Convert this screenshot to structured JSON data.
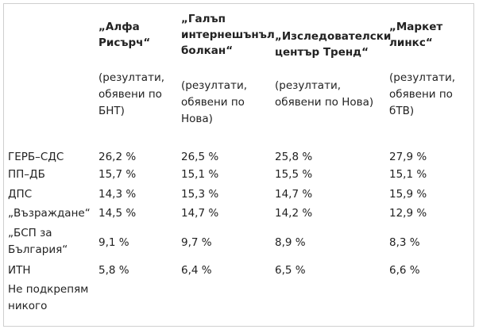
{
  "columns": [
    {
      "title": [
        "„Алфа",
        "Рисърч“"
      ],
      "note": [
        "(резултати,",
        "обявени по",
        "БНТ)"
      ]
    },
    {
      "title": [
        "„Галъп",
        "интернешънъл",
        "болкан“"
      ],
      "note": [
        "(резултати,",
        "обявени по",
        "Нова)"
      ]
    },
    {
      "title": [
        "„Изследователски",
        "център Тренд“"
      ],
      "note": [
        "(резултати,",
        "обявени по Нова)"
      ]
    },
    {
      "title": [
        "„Маркет",
        "линкс“"
      ],
      "note": [
        "(резултати,",
        "обявени по",
        "бТВ)"
      ]
    }
  ],
  "rows": [
    {
      "party": [
        "ГЕРБ–СДС"
      ],
      "values": [
        "26,2 %",
        "26,5 %",
        "25,8 %",
        "27,9 %"
      ]
    },
    {
      "party": [
        "ПП–ДБ"
      ],
      "values": [
        "15,7 %",
        "15,1 %",
        "15,5 %",
        "15,1 %"
      ]
    },
    {
      "party": [
        "ДПС"
      ],
      "values": [
        "14,3 %",
        "15,3 %",
        "14,7 %",
        "15,9 %"
      ]
    },
    {
      "party": [
        "„Възраждане“"
      ],
      "values": [
        "14,5 %",
        "14,7 %",
        "14,2 %",
        "12,9 %"
      ]
    },
    {
      "party": [
        "„БСП за",
        "България“"
      ],
      "values": [
        "9,1 %",
        "9,7 %",
        "8,9 %",
        "8,3 %"
      ]
    },
    {
      "party": [
        "ИТН"
      ],
      "values": [
        "5,8 %",
        "6,4 %",
        "6,5 %",
        "6,6 %"
      ]
    },
    {
      "party": [
        "Не подкрепям",
        "никого"
      ],
      "values": [
        "",
        "",
        "",
        ""
      ]
    }
  ]
}
